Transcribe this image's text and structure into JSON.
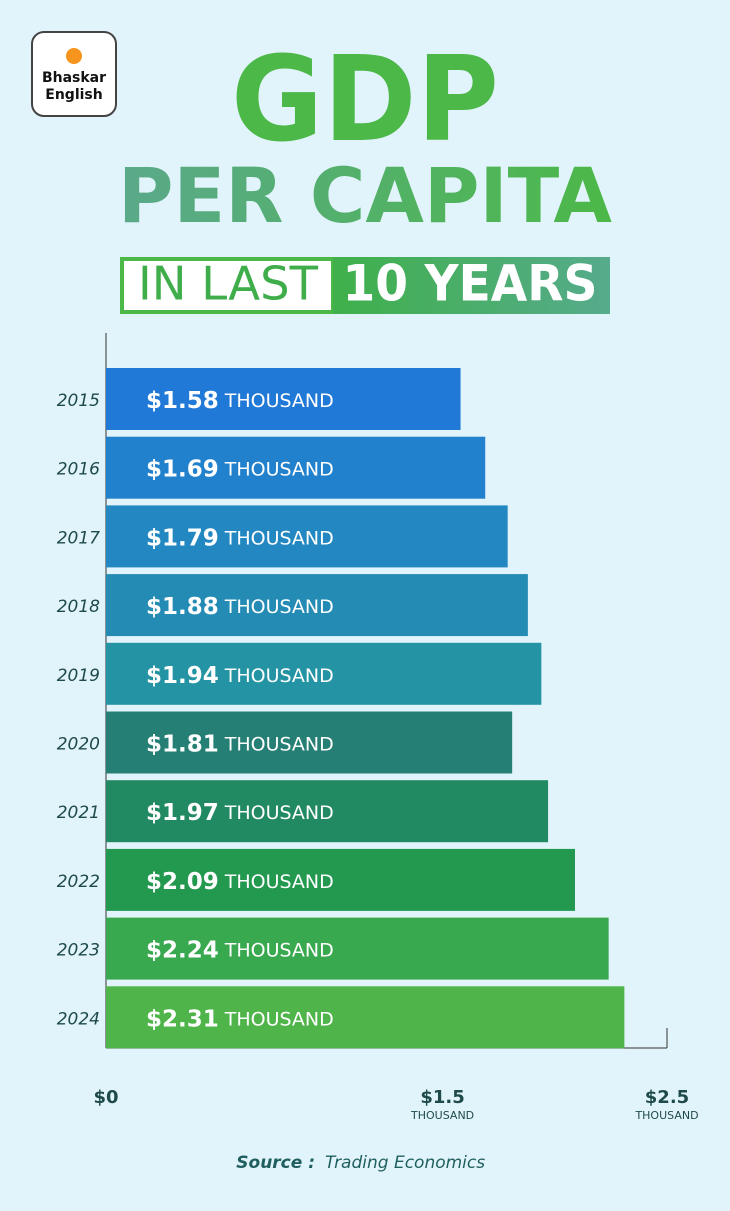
{
  "brand": {
    "line1": "Bhaskar",
    "line2": "English"
  },
  "chart_data": {
    "type": "bar",
    "orientation": "horizontal",
    "title": "GDP",
    "subtitle": "PER CAPITA",
    "tagline_plain": "IN LAST",
    "tagline_highlight": "10 YEARS",
    "categories": [
      "2015",
      "2016",
      "2017",
      "2018",
      "2019",
      "2020",
      "2021",
      "2022",
      "2023",
      "2024"
    ],
    "values": [
      1.58,
      1.69,
      1.79,
      1.88,
      1.94,
      1.81,
      1.97,
      2.09,
      2.24,
      2.31
    ],
    "value_labels": [
      "$1.58",
      "$1.69",
      "$1.79",
      "$1.88",
      "$1.94",
      "$1.81",
      "$1.97",
      "$2.09",
      "$2.24",
      "$2.31"
    ],
    "value_unit": "THOUSAND",
    "colors": [
      "#2079d6",
      "#2281cc",
      "#2388c1",
      "#238bb4",
      "#2493a4",
      "#267f74",
      "#228a63",
      "#23984f",
      "#39a94f",
      "#4fb54a"
    ],
    "xlim": [
      0,
      2.5
    ],
    "xticks": [
      {
        "value": 0,
        "label": "$0"
      },
      {
        "value": 1.5,
        "label": "$1.5"
      },
      {
        "value": 2.5,
        "label": "$2.5"
      }
    ],
    "xtick_unit": "THOUSAND",
    "source_label": "Source :",
    "source": "Trading Economics"
  }
}
